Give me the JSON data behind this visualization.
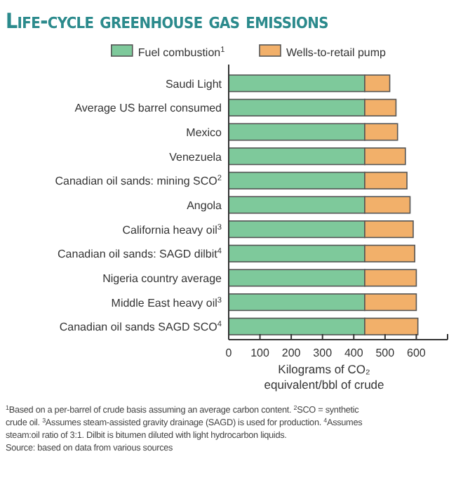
{
  "chart_data": {
    "type": "bar",
    "orientation": "horizontal",
    "stacked": true,
    "title": "Life-cycle greenhouse gas emissions",
    "categories": [
      "Saudi Light",
      "Average US barrel consumed",
      "Mexico",
      "Venezuela",
      "Canadian oil sands: mining SCO$^{2}$",
      "Angola",
      "California heavy oil$^{3}$",
      "Canadian oil sands: SAGD dilbit$^{4}$",
      "Nigeria country average",
      "Middle East heavy oil$^{3}$",
      "Canadian oil sands SAGD SCO$^{4}$"
    ],
    "series": [
      {
        "name": "Fuel combustion$^{1}$",
        "color": "#7ec99b",
        "values": [
          435,
          435,
          435,
          435,
          435,
          435,
          435,
          435,
          435,
          435,
          435
        ]
      },
      {
        "name": "Wells-to-retail pump",
        "color": "#f2b06a",
        "values": [
          80,
          100,
          105,
          130,
          135,
          145,
          155,
          160,
          165,
          165,
          170
        ]
      }
    ],
    "xlim": [
      0,
      700
    ],
    "xticks": [
      0,
      100,
      200,
      300,
      400,
      500,
      600,
      {
        "value": 700,
        "label": null
      }
    ],
    "xlabel": "Kilograms of CO₂ equivalent/bbl of crude",
    "legend": "top",
    "grid": false,
    "annotations": [
      "$^{1}$Based on a per-barrel of crude basis assuming an average carbon content. $^{2}$SCO = synthetic crude oil. $^{3}$Assumes steam-assisted gravity drainage (SAGD) is used for production. $^{4}$Assumes steam:oil ratio of 3:1. Dilbit is bitumen diluted with light hydrocarbon liquids.",
      "Source: based on data from various sources"
    ]
  }
}
